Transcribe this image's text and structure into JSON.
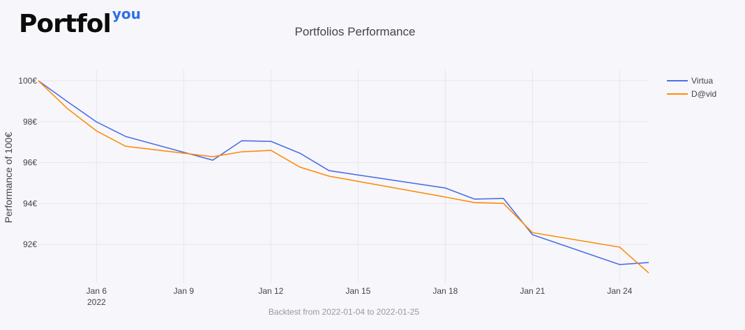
{
  "logo": {
    "main": "Portfol",
    "sup": "you"
  },
  "footer": "Backtest from 2022-01-04 to 2022-01-25",
  "chart_data": {
    "type": "line",
    "title": "Portfolios Performance",
    "xlabel": "",
    "ylabel": "Performance of 100€",
    "ylim": [
      90.4,
      100.5
    ],
    "xlim": [
      "2022-01-04",
      "2022-01-25"
    ],
    "yticks": [
      {
        "v": 100,
        "label": "100€"
      },
      {
        "v": 98,
        "label": "98€"
      },
      {
        "v": 96,
        "label": "96€"
      },
      {
        "v": 94,
        "label": "94€"
      },
      {
        "v": 92,
        "label": "92€"
      }
    ],
    "xticks": [
      {
        "day": 6,
        "label": "Jan 6",
        "sub": "2022"
      },
      {
        "day": 9,
        "label": "Jan 9"
      },
      {
        "day": 12,
        "label": "Jan 12"
      },
      {
        "day": 15,
        "label": "Jan 15"
      },
      {
        "day": 18,
        "label": "Jan 18"
      },
      {
        "day": 21,
        "label": "Jan 21"
      },
      {
        "day": 24,
        "label": "Jan 24"
      }
    ],
    "legend_position": "top-right",
    "grid": true,
    "series": [
      {
        "name": "Virtua",
        "color": "#4c6ee6",
        "x": [
          4,
          5,
          6,
          7,
          10,
          11,
          12,
          13,
          14,
          18,
          19,
          20,
          21,
          24,
          25
        ],
        "values": [
          100,
          98.98,
          97.99,
          97.28,
          96.12,
          97.07,
          97.04,
          96.46,
          95.61,
          94.76,
          94.22,
          94.25,
          92.48,
          91.02,
          91.12
        ]
      },
      {
        "name": "D@vid",
        "color": "#ff8c0a",
        "x": [
          4,
          5,
          6,
          7,
          10,
          11,
          12,
          13,
          14,
          18,
          19,
          20,
          21,
          24,
          25
        ],
        "values": [
          100,
          98.64,
          97.55,
          96.8,
          96.29,
          96.53,
          96.6,
          95.78,
          95.34,
          94.32,
          94.05,
          94.01,
          92.58,
          91.87,
          90.61
        ]
      }
    ]
  }
}
